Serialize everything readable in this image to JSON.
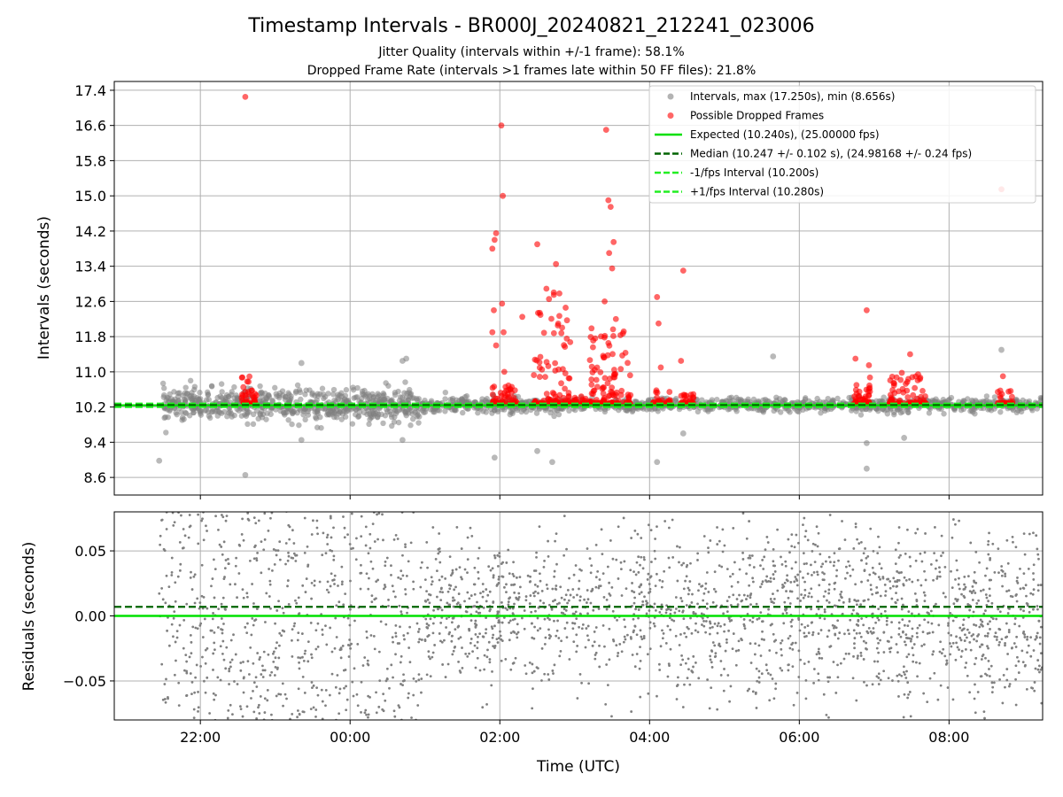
{
  "chart_data": {
    "title": "Timestamp Intervals - BR000J_20240821_212241_023006",
    "subtitles": [
      "Jitter Quality (intervals within +/-1 frame): 58.1%",
      "Dropped Frame Rate (intervals >1 frames late within 50 FF files): 21.8%"
    ],
    "xlabel": "Time (UTC)",
    "x_ticks": [
      "22:00",
      "00:00",
      "02:00",
      "04:00",
      "06:00",
      "08:00"
    ],
    "x_tick_hours": [
      22,
      24,
      26,
      28,
      30,
      32
    ],
    "x_range_hours": [
      20.85,
      33.25
    ],
    "grid": true,
    "colors": {
      "interval": "#808080",
      "dropped": "#ff0000",
      "expected": "#00e000",
      "median": "#006400",
      "band": "#22ee22"
    },
    "panels": [
      {
        "type": "scatter",
        "ylabel": "Intervals (seconds)",
        "ylim": [
          8.2,
          17.6
        ],
        "y_ticks": [
          "8.6",
          "9.4",
          "10.2",
          "11.0",
          "11.8",
          "12.6",
          "13.4",
          "14.2",
          "15.0",
          "15.8",
          "16.6",
          "17.4"
        ],
        "y_tick_values": [
          8.6,
          9.4,
          10.2,
          11.0,
          11.8,
          12.6,
          13.4,
          14.2,
          15.0,
          15.8,
          16.6,
          17.4
        ],
        "expected": 10.24,
        "median": 10.247,
        "minus_band": 10.2,
        "plus_band": 10.28,
        "legend_position": "upper right",
        "legend": [
          {
            "label": "Intervals, max (17.250s), min (8.656s)",
            "kind": "dot",
            "color": "#808080"
          },
          {
            "label": "Possible Dropped Frames",
            "kind": "dot",
            "color": "#ff0000"
          },
          {
            "label": "Expected (10.240s), (25.00000 fps)",
            "kind": "line",
            "color": "#00e000"
          },
          {
            "label": "Median (10.247 +/- 0.102 s), (24.98168 +/- 0.24 fps)",
            "kind": "dash",
            "color": "#006400"
          },
          {
            "label": "-1/fps Interval (10.200s)",
            "kind": "dash",
            "color": "#22ee22"
          },
          {
            "label": "+1/fps Interval (10.280s)",
            "kind": "dash",
            "color": "#22ee22"
          }
        ],
        "outliers": [
          {
            "t": 22.6,
            "v": 17.25,
            "dropped": true
          },
          {
            "t": 21.45,
            "v": 8.98,
            "dropped": false
          },
          {
            "t": 22.6,
            "v": 8.656,
            "dropped": false
          },
          {
            "t": 25.9,
            "v": 13.8,
            "dropped": true
          },
          {
            "t": 25.93,
            "v": 14.0,
            "dropped": true
          },
          {
            "t": 25.95,
            "v": 14.15,
            "dropped": true
          },
          {
            "t": 25.92,
            "v": 12.4,
            "dropped": true
          },
          {
            "t": 25.9,
            "v": 11.9,
            "dropped": true
          },
          {
            "t": 25.95,
            "v": 11.6,
            "dropped": true
          },
          {
            "t": 26.02,
            "v": 16.6,
            "dropped": true
          },
          {
            "t": 26.04,
            "v": 15.0,
            "dropped": true
          },
          {
            "t": 26.03,
            "v": 12.55,
            "dropped": true
          },
          {
            "t": 26.05,
            "v": 11.9,
            "dropped": true
          },
          {
            "t": 26.06,
            "v": 11.0,
            "dropped": true
          },
          {
            "t": 26.3,
            "v": 12.25,
            "dropped": true
          },
          {
            "t": 26.5,
            "v": 13.9,
            "dropped": true
          },
          {
            "t": 26.75,
            "v": 13.45,
            "dropped": true
          },
          {
            "t": 27.42,
            "v": 16.5,
            "dropped": true
          },
          {
            "t": 27.45,
            "v": 14.9,
            "dropped": true
          },
          {
            "t": 27.48,
            "v": 14.75,
            "dropped": true
          },
          {
            "t": 27.46,
            "v": 13.7,
            "dropped": true
          },
          {
            "t": 27.5,
            "v": 13.35,
            "dropped": true
          },
          {
            "t": 27.52,
            "v": 13.95,
            "dropped": true
          },
          {
            "t": 27.4,
            "v": 12.6,
            "dropped": true
          },
          {
            "t": 27.55,
            "v": 12.2,
            "dropped": true
          },
          {
            "t": 28.1,
            "v": 12.7,
            "dropped": true
          },
          {
            "t": 28.12,
            "v": 12.1,
            "dropped": true
          },
          {
            "t": 28.45,
            "v": 13.3,
            "dropped": true
          },
          {
            "t": 28.15,
            "v": 11.1,
            "dropped": true
          },
          {
            "t": 28.42,
            "v": 11.25,
            "dropped": true
          },
          {
            "t": 30.75,
            "v": 11.3,
            "dropped": true
          },
          {
            "t": 30.9,
            "v": 12.4,
            "dropped": true
          },
          {
            "t": 30.93,
            "v": 11.15,
            "dropped": true
          },
          {
            "t": 31.48,
            "v": 11.4,
            "dropped": true
          },
          {
            "t": 32.7,
            "v": 15.15,
            "dropped": true
          },
          {
            "t": 32.72,
            "v": 10.9,
            "dropped": true
          },
          {
            "t": 32.7,
            "v": 11.5,
            "dropped": false
          },
          {
            "t": 26.5,
            "v": 9.2,
            "dropped": false
          },
          {
            "t": 26.7,
            "v": 8.95,
            "dropped": false
          },
          {
            "t": 25.93,
            "v": 9.05,
            "dropped": false
          },
          {
            "t": 28.1,
            "v": 8.95,
            "dropped": false
          },
          {
            "t": 30.9,
            "v": 8.8,
            "dropped": false
          },
          {
            "t": 30.9,
            "v": 9.38,
            "dropped": false
          },
          {
            "t": 23.35,
            "v": 11.2,
            "dropped": false
          },
          {
            "t": 24.7,
            "v": 11.25,
            "dropped": false
          },
          {
            "t": 24.75,
            "v": 11.3,
            "dropped": false
          },
          {
            "t": 29.65,
            "v": 11.35,
            "dropped": false
          },
          {
            "t": 23.35,
            "v": 9.45,
            "dropped": false
          },
          {
            "t": 24.7,
            "v": 9.45,
            "dropped": false
          },
          {
            "t": 28.45,
            "v": 9.6,
            "dropped": false
          },
          {
            "t": 31.4,
            "v": 9.5,
            "dropped": false
          }
        ],
        "dropped_clusters": [
          {
            "t_start": 22.55,
            "t_end": 22.75,
            "v_max": 10.9,
            "count": 45
          },
          {
            "t_start": 25.9,
            "t_end": 26.25,
            "v_max": 10.7,
            "count": 50
          },
          {
            "t_start": 26.45,
            "t_end": 26.95,
            "v_max": 12.9,
            "count": 95
          },
          {
            "t_start": 26.95,
            "t_end": 27.15,
            "v_max": 10.5,
            "count": 25
          },
          {
            "t_start": 27.2,
            "t_end": 27.75,
            "v_max": 12.0,
            "count": 110
          },
          {
            "t_start": 28.05,
            "t_end": 28.3,
            "v_max": 10.6,
            "count": 30
          },
          {
            "t_start": 28.4,
            "t_end": 28.6,
            "v_max": 10.5,
            "count": 25
          },
          {
            "t_start": 30.7,
            "t_end": 30.95,
            "v_max": 10.9,
            "count": 40
          },
          {
            "t_start": 31.2,
            "t_end": 31.7,
            "v_max": 11.0,
            "count": 75
          },
          {
            "t_start": 32.65,
            "t_end": 32.85,
            "v_max": 10.6,
            "count": 25
          }
        ],
        "background_density": [
          {
            "t_start": 21.5,
            "t_end": 25.0,
            "spread": 0.4,
            "count": 650
          },
          {
            "t_start": 25.0,
            "t_end": 26.5,
            "spread": 0.2,
            "count": 220
          },
          {
            "t_start": 26.5,
            "t_end": 33.25,
            "spread": 0.17,
            "count": 800
          }
        ]
      },
      {
        "type": "scatter",
        "ylabel": "Residuals (seconds)",
        "ylim": [
          -0.08,
          0.08
        ],
        "y_ticks": [
          "−0.05",
          "0.00",
          "0.05"
        ],
        "y_tick_values": [
          -0.05,
          0.0,
          0.05
        ],
        "expected": 0.0,
        "median": 0.007,
        "residual_density": [
          {
            "t_start": 21.45,
            "t_end": 25.0,
            "spread": 0.08,
            "count": 700
          },
          {
            "t_start": 25.0,
            "t_end": 26.2,
            "spread": 0.035,
            "count": 300
          },
          {
            "t_start": 26.2,
            "t_end": 27.3,
            "spread": 0.035,
            "count": 200
          },
          {
            "t_start": 27.3,
            "t_end": 27.75,
            "spread": 0.05,
            "count": 60
          },
          {
            "t_start": 27.75,
            "t_end": 33.25,
            "spread": 0.045,
            "count": 1300
          }
        ]
      }
    ]
  }
}
